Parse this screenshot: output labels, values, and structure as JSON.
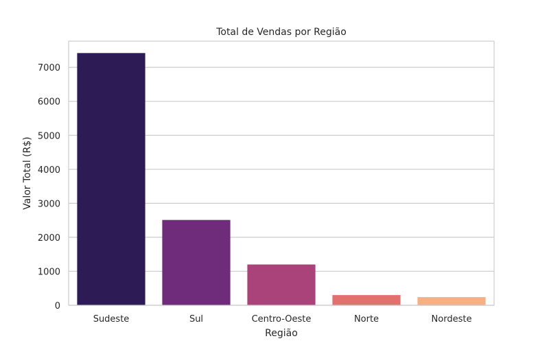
{
  "chart_data": {
    "type": "bar",
    "title": "Total de Vendas por Região",
    "xlabel": "Região",
    "ylabel": "Valor Total (R$)",
    "categories": [
      "Sudeste",
      "Sul",
      "Centro-Oeste",
      "Norte",
      "Nordeste"
    ],
    "values": [
      7420,
      2510,
      1200,
      300,
      240
    ],
    "colors": [
      "#2d1b56",
      "#6e2c7a",
      "#a9437a",
      "#e2706d",
      "#f3b185"
    ],
    "ylim": [
      0,
      7770
    ],
    "yticks": [
      0,
      1000,
      2000,
      3000,
      4000,
      5000,
      6000,
      7000
    ],
    "grid": true,
    "grid_axis": "y",
    "legend": "none"
  }
}
